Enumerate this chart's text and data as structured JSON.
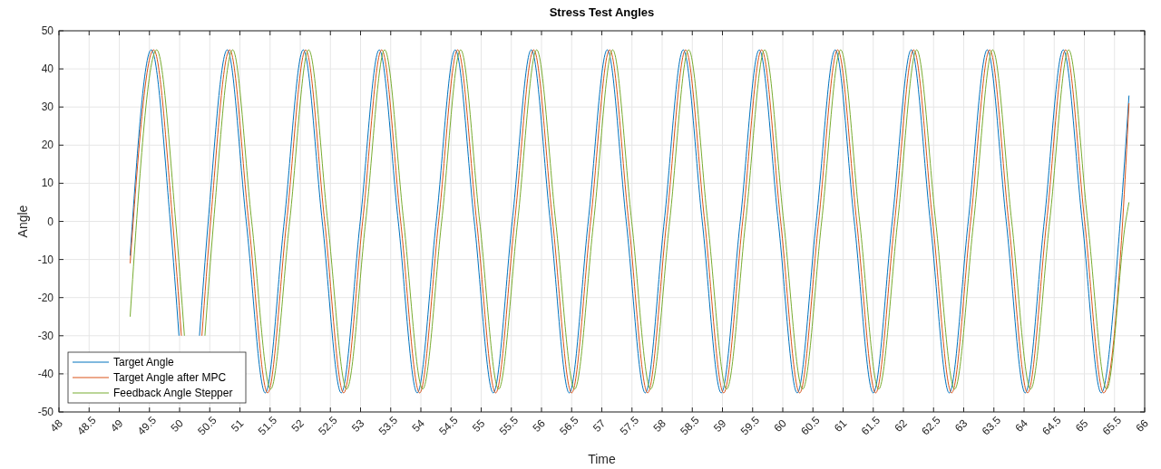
{
  "chart_data": {
    "type": "line",
    "title": "Stress Test Angles",
    "xlabel": "Time",
    "ylabel": "Angle",
    "xlim": [
      48,
      66
    ],
    "xticks": [
      48,
      48.5,
      49,
      49.5,
      50,
      50.5,
      51,
      51.5,
      52,
      52.5,
      53,
      53.5,
      54,
      54.5,
      55,
      55.5,
      56,
      56.5,
      57,
      57.5,
      58,
      58.5,
      59,
      59.5,
      60,
      60.5,
      61,
      61.5,
      62,
      62.5,
      63,
      63.5,
      64,
      64.5,
      65,
      65.5,
      66
    ],
    "ylim": [
      -50,
      50
    ],
    "yticks": [
      -50,
      -40,
      -30,
      -20,
      -10,
      0,
      10,
      20,
      30,
      40,
      50
    ],
    "grid": true,
    "legend": "bottom left",
    "marker": "none",
    "line_style": "solid",
    "series": [
      {
        "name": "Target Angle",
        "color": "#0072bd",
        "x": [
          49.18,
          49.53,
          49.845,
          49.99,
          50.16,
          50.33,
          50.475,
          50.79,
          51.105,
          51.42,
          51.735,
          52.05,
          52.365,
          52.68,
          52.995,
          53.31,
          53.625,
          53.94,
          54.255,
          54.57,
          54.885,
          55.2,
          55.515,
          55.83,
          56.145,
          56.46,
          56.775,
          57.09,
          57.405,
          57.72,
          58.035,
          58.35,
          58.665,
          58.98,
          59.295,
          59.61,
          59.925,
          60.24,
          60.555,
          60.87,
          61.185,
          61.5,
          61.815,
          62.13,
          62.445,
          62.76,
          63.075,
          63.39,
          63.705,
          64.02,
          64.335,
          64.65,
          64.965,
          65.28,
          65.595,
          65.74
        ],
        "values": [
          -9,
          45,
          0,
          -30,
          null,
          -30,
          0,
          45,
          0,
          -45,
          0,
          45,
          0,
          -45,
          0,
          45,
          0,
          -45,
          0,
          45,
          0,
          -45,
          0,
          45,
          0,
          -45,
          0,
          45,
          0,
          -45,
          0,
          45,
          0,
          -45,
          0,
          45,
          0,
          -45,
          0,
          45,
          0,
          -45,
          0,
          45,
          0,
          -45,
          0,
          45,
          0,
          -45,
          0,
          45,
          0,
          -45,
          0,
          33
        ]
      },
      {
        "name": "Target Angle after MPC",
        "color": "#d95319",
        "x": [
          49.18,
          49.57,
          49.885,
          50.03,
          50.2,
          50.37,
          50.515,
          50.83,
          51.145,
          51.46,
          51.775,
          52.09,
          52.405,
          52.72,
          53.035,
          53.35,
          53.665,
          53.98,
          54.295,
          54.61,
          54.925,
          55.24,
          55.555,
          55.87,
          56.185,
          56.5,
          56.815,
          57.13,
          57.445,
          57.76,
          58.075,
          58.39,
          58.705,
          59.02,
          59.335,
          59.65,
          59.965,
          60.28,
          60.595,
          60.91,
          61.225,
          61.54,
          61.855,
          62.17,
          62.485,
          62.8,
          63.115,
          63.43,
          63.745,
          64.06,
          64.375,
          64.69,
          65.005,
          65.32,
          65.635,
          65.74
        ],
        "values": [
          -11,
          45,
          0,
          -30,
          null,
          -30,
          0,
          45,
          0,
          -45,
          0,
          45,
          0,
          -45,
          0,
          45,
          0,
          -45,
          0,
          45,
          0,
          -45,
          0,
          45,
          0,
          -45,
          0,
          45,
          0,
          -45,
          0,
          45,
          0,
          -45,
          0,
          45,
          0,
          -45,
          0,
          45,
          0,
          -45,
          0,
          45,
          0,
          -45,
          0,
          45,
          0,
          -45,
          0,
          45,
          0,
          -45,
          0,
          31
        ]
      },
      {
        "name": "Feedback Angle Stepper",
        "color": "#77ac30",
        "x": [
          49.18,
          49.62,
          49.935,
          50.08,
          50.25,
          50.42,
          50.565,
          50.88,
          51.195,
          51.51,
          51.825,
          52.14,
          52.455,
          52.77,
          53.085,
          53.4,
          53.715,
          54.03,
          54.345,
          54.66,
          54.975,
          55.29,
          55.605,
          55.92,
          56.235,
          56.55,
          56.865,
          57.18,
          57.495,
          57.81,
          58.125,
          58.44,
          58.755,
          59.07,
          59.385,
          59.7,
          60.015,
          60.33,
          60.645,
          60.96,
          61.275,
          61.59,
          61.905,
          62.22,
          62.535,
          62.85,
          63.165,
          63.48,
          63.795,
          64.11,
          64.425,
          64.74,
          65.055,
          65.37,
          65.685,
          65.74
        ],
        "values": [
          -25,
          45,
          0,
          -30,
          null,
          -30,
          0,
          45,
          0,
          -44,
          0,
          45,
          0,
          -44,
          0,
          45,
          0,
          -44,
          0,
          45,
          0,
          -44,
          0,
          45,
          0,
          -44,
          0,
          45,
          0,
          -44,
          0,
          45,
          0,
          -44,
          0,
          45,
          0,
          -44,
          0,
          45,
          0,
          -44,
          0,
          45,
          0,
          -44,
          0,
          45,
          0,
          -44,
          0,
          45,
          0,
          -44,
          0,
          5
        ]
      }
    ]
  }
}
